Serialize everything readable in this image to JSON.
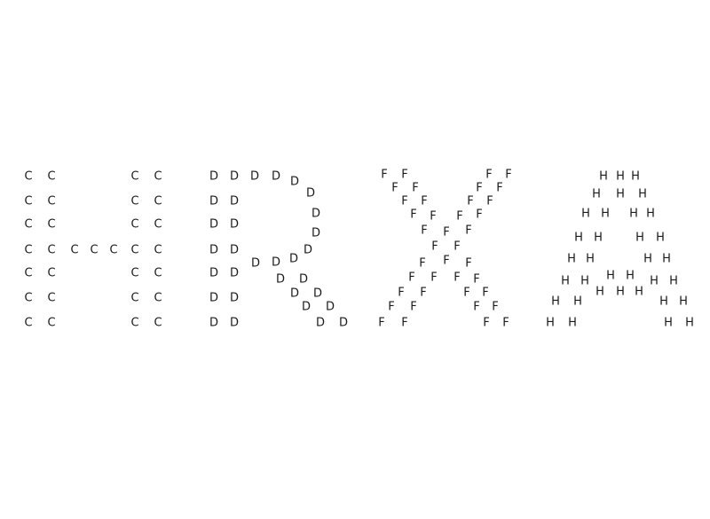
{
  "letters": [
    {
      "name": "h",
      "glyph": "C"
    },
    {
      "name": "r",
      "glyph": "D"
    },
    {
      "name": "x",
      "glyph": "F"
    },
    {
      "name": "a",
      "glyph": "H"
    }
  ],
  "colors": {
    "background": "#ffffff",
    "text": "#1a1a1a"
  }
}
